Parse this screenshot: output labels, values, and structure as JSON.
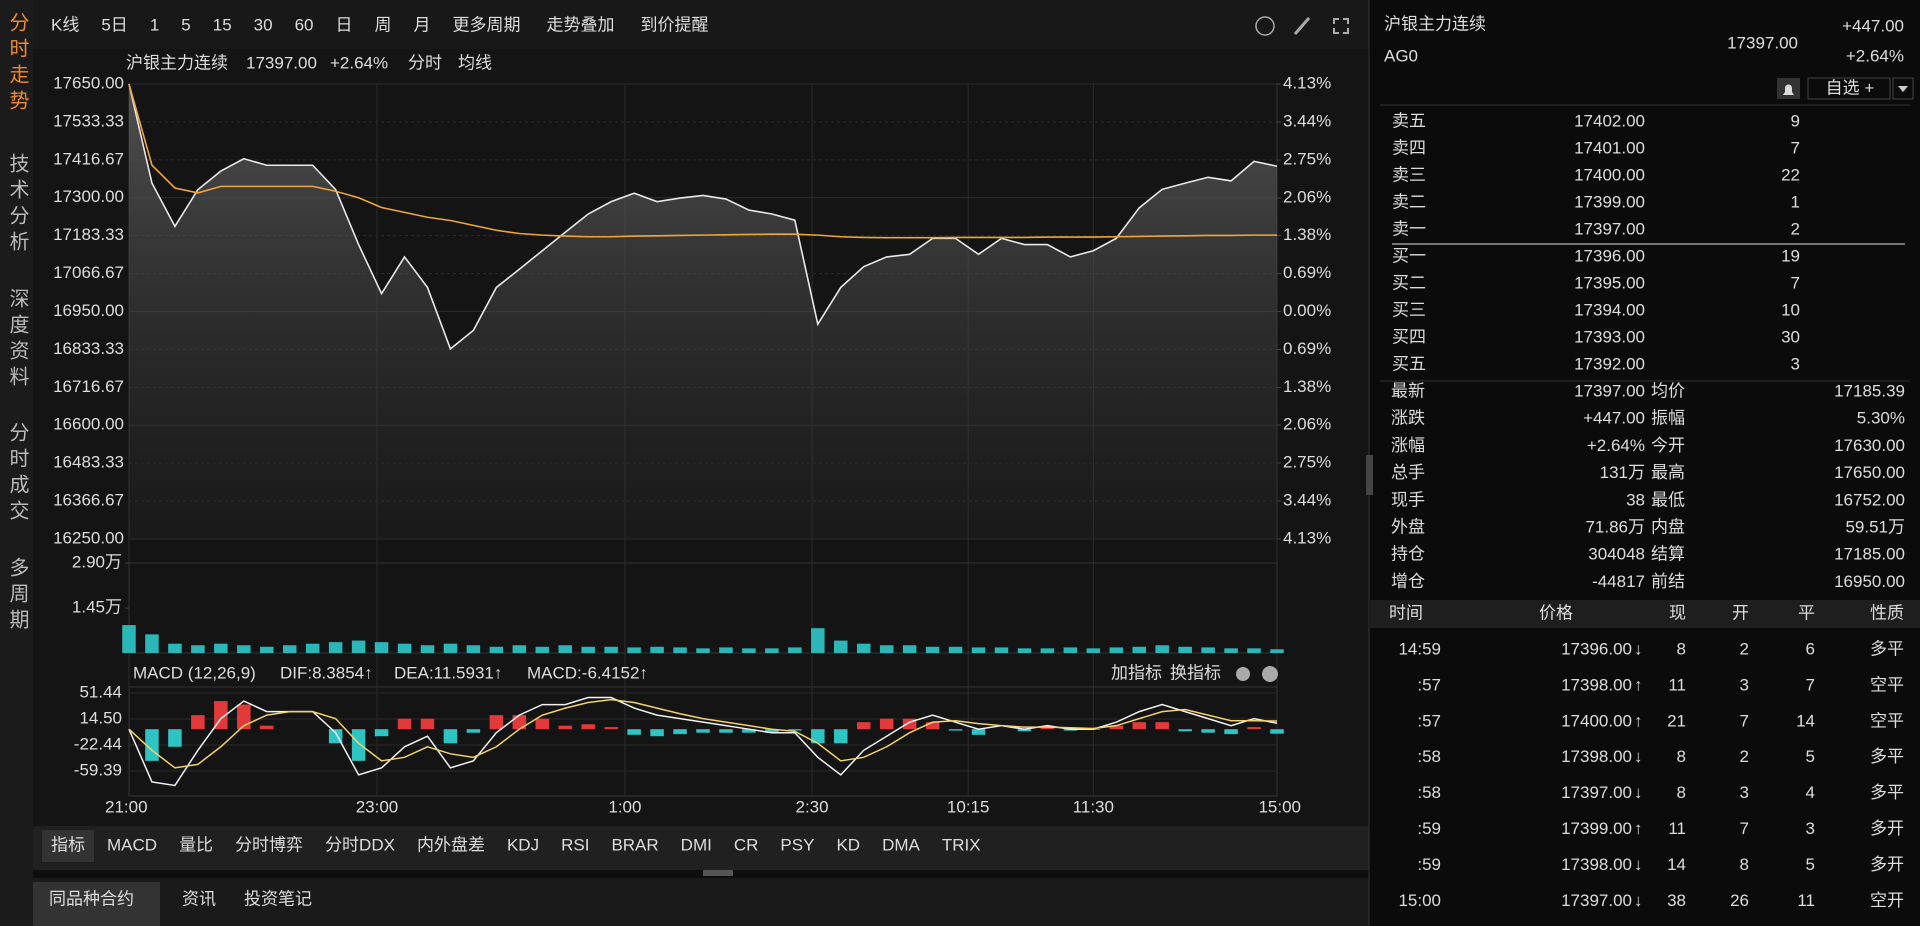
{
  "sidebar_tabs": [
    "分时走势",
    "技术分析",
    "深度资料",
    "分时成交",
    "多周期"
  ],
  "toolbar": [
    "K线",
    "5日",
    "1",
    "5",
    "15",
    "30",
    "60",
    "日",
    "周",
    "月",
    "更多周期",
    "走势叠加",
    "到价提醒"
  ],
  "chart_data": [
    {
      "type": "line",
      "title": "沪银主力连续",
      "price": "17397.00",
      "change": "+2.64%",
      "x": [
        0,
        1,
        2,
        3,
        4,
        5,
        6,
        7,
        8,
        9,
        10,
        11,
        12,
        13,
        14,
        15,
        16,
        17,
        18,
        19,
        20,
        21,
        22,
        23,
        24,
        25,
        26,
        27,
        28,
        29,
        30,
        31,
        32,
        33,
        34,
        35,
        36,
        37,
        38,
        39,
        40,
        41,
        42,
        43,
        44,
        45,
        46,
        47,
        48,
        49,
        50
      ],
      "xlim": [
        0,
        50
      ],
      "series": [
        {
          "name": "分时",
          "color": "#e8e8e8",
          "values": [
            17650,
            17345,
            17212,
            17325,
            17382,
            17420,
            17400,
            17400,
            17400,
            17325,
            17156,
            17005,
            17118,
            17024,
            16835,
            16892,
            17024,
            17080,
            17137,
            17194,
            17250,
            17288,
            17314,
            17288,
            17299,
            17307,
            17296,
            17262,
            17250,
            17231,
            16911,
            17024,
            17088,
            17118,
            17126,
            17175,
            17175,
            17126,
            17175,
            17156,
            17156,
            17118,
            17137,
            17175,
            17269,
            17326,
            17345,
            17363,
            17352,
            17412,
            17397
          ]
        },
        {
          "name": "均线",
          "color": "#f0a636",
          "values": [
            17650,
            17400,
            17330,
            17315,
            17335,
            17335,
            17335,
            17335,
            17335,
            17320,
            17300,
            17270,
            17255,
            17240,
            17230,
            17215,
            17200,
            17190,
            17185,
            17182,
            17180,
            17180,
            17182,
            17183,
            17184,
            17185,
            17186,
            17187,
            17188,
            17188,
            17185,
            17180,
            17178,
            17177,
            17177,
            17177,
            17178,
            17178,
            17178,
            17178,
            17179,
            17179,
            17179,
            17180,
            17181,
            17182,
            17183,
            17184,
            17184,
            17185,
            17185
          ]
        }
      ],
      "ylim": [
        16250,
        17650
      ],
      "yticks": [
        {
          "value": 17650,
          "label": "17650.00"
        },
        {
          "value": 17533.33,
          "label": "17533.33"
        },
        {
          "value": 17416.67,
          "label": "17416.67"
        },
        {
          "value": 17300,
          "label": "17300.00"
        },
        {
          "value": 17183.33,
          "label": "17183.33"
        },
        {
          "value": 17066.67,
          "label": "17066.67"
        },
        {
          "value": 16950,
          "label": "16950.00"
        },
        {
          "value": 16833.33,
          "label": "16833.33"
        },
        {
          "value": 16716.67,
          "label": "16716.67"
        },
        {
          "value": 16600,
          "label": "16600.00"
        },
        {
          "value": 16483.33,
          "label": "16483.33"
        },
        {
          "value": 16366.67,
          "label": "16366.67"
        },
        {
          "value": 16250,
          "label": "16250.00"
        }
      ],
      "y2lim": [
        -4.13,
        4.13
      ],
      "y2ticks": [
        {
          "value": 4.13,
          "label": "4.13%"
        },
        {
          "value": 3.44,
          "label": "3.44%"
        },
        {
          "value": 2.75,
          "label": "2.75%"
        },
        {
          "value": 2.06,
          "label": "2.06%"
        },
        {
          "value": 1.38,
          "label": "1.38%"
        },
        {
          "value": 0.69,
          "label": "0.69%"
        },
        {
          "value": 0,
          "label": "0.00%"
        },
        {
          "value": -0.69,
          "label": "0.69%"
        },
        {
          "value": -1.38,
          "label": "1.38%"
        },
        {
          "value": -2.06,
          "label": "2.06%"
        },
        {
          "value": -2.75,
          "label": "2.75%"
        },
        {
          "value": -3.44,
          "label": "3.44%"
        },
        {
          "value": -4.13,
          "label": "4.13%"
        }
      ],
      "up_color": "#ef3b3b",
      "down_color": "#2fc45a"
    },
    {
      "type": "bar",
      "x": [
        0,
        1,
        2,
        3,
        4,
        5,
        6,
        7,
        8,
        9,
        10,
        11,
        12,
        13,
        14,
        15,
        16,
        17,
        18,
        19,
        20,
        21,
        22,
        23,
        24,
        25,
        26,
        27,
        28,
        29,
        30,
        31,
        32,
        33,
        34,
        35,
        36,
        37,
        38,
        39,
        40,
        41,
        42,
        43,
        44,
        45,
        46,
        47,
        48,
        49,
        50
      ],
      "xlim": [
        0,
        50
      ],
      "color": "#2bb7b7",
      "values": [
        9000,
        6000,
        3000,
        2500,
        3000,
        2500,
        2000,
        2500,
        3000,
        3500,
        4000,
        3500,
        3000,
        2500,
        3000,
        2500,
        2000,
        2500,
        2000,
        2500,
        2000,
        2000,
        1800,
        2000,
        1800,
        1500,
        1800,
        1500,
        1500,
        1800,
        8000,
        4000,
        3000,
        2500,
        2500,
        2000,
        2000,
        1800,
        1800,
        1500,
        1500,
        1800,
        1500,
        1800,
        2000,
        2500,
        2000,
        1800,
        1500,
        1500,
        1200
      ],
      "ylim": [
        0,
        29000
      ],
      "yticks": [
        {
          "value": 29000,
          "label": "2.90万"
        },
        {
          "value": 14500,
          "label": "1.45万"
        }
      ]
    },
    {
      "type": "macd",
      "title": "MACD (12,26,9)",
      "controls": [
        "加指标",
        "换指标"
      ],
      "x": [
        0,
        1,
        2,
        3,
        4,
        5,
        6,
        7,
        8,
        9,
        10,
        11,
        12,
        13,
        14,
        15,
        16,
        17,
        18,
        19,
        20,
        21,
        22,
        23,
        24,
        25,
        26,
        27,
        28,
        29,
        30,
        31,
        32,
        33,
        34,
        35,
        36,
        37,
        38,
        39,
        40,
        41,
        42,
        43,
        44,
        45,
        46,
        47,
        48,
        49,
        50
      ],
      "xlim": [
        0,
        50
      ],
      "xticks": [
        {
          "value": 0,
          "label": "21:00"
        },
        {
          "value": 10.8,
          "label": "23:00"
        },
        {
          "value": 21.6,
          "label": "1:00"
        },
        {
          "value": 29.75,
          "label": "2:30"
        },
        {
          "value": 36.55,
          "label": "10:15"
        },
        {
          "value": 42,
          "label": "11:30"
        },
        {
          "value": 50,
          "label": "15:00"
        }
      ],
      "series": [
        {
          "name": "DIF:8.3854↑",
          "color": "#f2f2f2",
          "values": [
            0,
            -75,
            -80,
            -30,
            15,
            40,
            25,
            25,
            25,
            -5,
            -65,
            -55,
            -25,
            -10,
            -55,
            -45,
            -5,
            20,
            35,
            35,
            45,
            45,
            30,
            20,
            15,
            10,
            5,
            0,
            -5,
            -5,
            -40,
            -65,
            -30,
            -10,
            10,
            20,
            10,
            0,
            5,
            0,
            5,
            0,
            0,
            10,
            25,
            35,
            25,
            15,
            5,
            15,
            8.3854
          ]
        },
        {
          "name": "DEA:11.5931↑",
          "color": "#f3d26a",
          "values": [
            0,
            -30,
            -55,
            -50,
            -25,
            5,
            20,
            25,
            25,
            15,
            -20,
            -45,
            -40,
            -25,
            -35,
            -40,
            -25,
            0,
            20,
            30,
            38,
            42,
            38,
            30,
            22,
            15,
            10,
            5,
            0,
            -3,
            -20,
            -45,
            -40,
            -25,
            -5,
            10,
            12,
            8,
            5,
            3,
            3,
            2,
            1,
            5,
            15,
            25,
            28,
            20,
            12,
            12,
            11.5931
          ]
        },
        {
          "name": "MACD:-6.4152↑",
          "color": "#d454e0",
          "values": [
            0,
            -45,
            -25,
            20,
            40,
            35,
            5,
            0,
            0,
            -20,
            -45,
            -10,
            15,
            15,
            -20,
            -5,
            20,
            20,
            15,
            5,
            7,
            3,
            -8,
            -10,
            -7,
            -5,
            -5,
            -5,
            -5,
            -2,
            -20,
            -20,
            10,
            15,
            15,
            10,
            -2,
            -8,
            0,
            -3,
            2,
            -2,
            -1,
            5,
            10,
            10,
            -3,
            -5,
            -7,
            3,
            -6.4152
          ]
        }
      ],
      "ylim": [
        -95,
        60
      ],
      "yticks": [
        51.44,
        {
          "value": 14.5,
          "label": "14.50"
        },
        -22.44,
        -59.39
      ],
      "up_color": "#e23a3a",
      "down_color": "#2ec4c4"
    }
  ],
  "indicator_tabs": [
    "指标",
    "MACD",
    "量比",
    "分时博弈",
    "分时DDX",
    "内外盘差",
    "KDJ",
    "RSI",
    "BRAR",
    "DMI",
    "CR",
    "PSY",
    "KD",
    "DMA",
    "TRIX"
  ],
  "bottom_tabs": [
    "同品种合约",
    "资讯",
    "投资笔记"
  ],
  "quote": {
    "name": "沪银主力连续",
    "code": "AG0",
    "price": "17397.00",
    "change": "+447.00",
    "change_pct": "+2.64%",
    "watch": "自选 +"
  },
  "order_book": [
    {
      "label": "卖五",
      "price": "17402.00",
      "volume": "9"
    },
    {
      "label": "卖四",
      "price": "17401.00",
      "volume": "7"
    },
    {
      "label": "卖三",
      "price": "17400.00",
      "volume": "22"
    },
    {
      "label": "卖二",
      "price": "17399.00",
      "volume": "1"
    },
    {
      "label": "卖一",
      "price": "17397.00",
      "volume": "2"
    },
    {
      "label": "买一",
      "price": "17396.00",
      "volume": "19"
    },
    {
      "label": "买二",
      "price": "17395.00",
      "volume": "7"
    },
    {
      "label": "买三",
      "price": "17394.00",
      "volume": "10"
    },
    {
      "label": "买四",
      "price": "17393.00",
      "volume": "30"
    },
    {
      "label": "买五",
      "price": "17392.00",
      "volume": "3"
    }
  ],
  "stats": [
    [
      {
        "label": "最新",
        "value": "17397.00",
        "color": "#ef3b3b"
      },
      {
        "label": "均价",
        "value": "17185.39",
        "color": "#ef3b3b"
      }
    ],
    [
      {
        "label": "涨跌",
        "value": "+447.00",
        "color": "#ef3b3b"
      },
      {
        "label": "振幅",
        "value": "5.30%",
        "color": "#e6e6e6"
      }
    ],
    [
      {
        "label": "涨幅",
        "value": "+2.64%",
        "color": "#ef3b3b"
      },
      {
        "label": "今开",
        "value": "17630.00",
        "color": "#ef3b3b"
      }
    ],
    [
      {
        "label": "总手",
        "value": "131万",
        "color": "#e6e6e6"
      },
      {
        "label": "最高",
        "value": "17650.00",
        "color": "#ef3b3b"
      }
    ],
    [
      {
        "label": "现手",
        "value": "38",
        "color": "#e6e6e6"
      },
      {
        "label": "最低",
        "value": "16752.00",
        "color": "#2fc45a"
      }
    ],
    [
      {
        "label": "外盘",
        "value": "71.86万",
        "color": "#ef3b3b"
      },
      {
        "label": "内盘",
        "value": "59.51万",
        "color": "#2fc45a"
      }
    ],
    [
      {
        "label": "持仓",
        "value": "304048",
        "color": "#e6e6e6"
      },
      {
        "label": "结算",
        "value": "17185.00",
        "color": "#e6e6e6"
      }
    ],
    [
      {
        "label": "增仓",
        "value": "-44817",
        "color": "#2fc45a"
      },
      {
        "label": "前结",
        "value": "16950.00",
        "color": "#e6e6e6"
      }
    ]
  ],
  "trades": {
    "columns": [
      "时间",
      "价格",
      "现",
      "开",
      "平",
      "性质"
    ],
    "rows": [
      {
        "time": "14:59",
        "price": "17396.00",
        "arrow": "↓",
        "arrow_color": "#2fc45a",
        "now": "8",
        "now_color": "#2fc45a",
        "open": "2",
        "close": "6",
        "nature": "多平",
        "nature_color": "#2fc45a"
      },
      {
        "time": ":57",
        "price": "17398.00",
        "arrow": "↑",
        "arrow_color": "#ef3b3b",
        "now": "11",
        "now_color": "#ef3b3b",
        "open": "3",
        "close": "7",
        "nature": "空平",
        "nature_color": "#ef3b3b"
      },
      {
        "time": ":57",
        "price": "17400.00",
        "arrow": "↑",
        "arrow_color": "#ef3b3b",
        "now": "21",
        "now_color": "#ef3b3b",
        "open": "7",
        "close": "14",
        "nature": "空平",
        "nature_color": "#ef3b3b"
      },
      {
        "time": ":58",
        "price": "17398.00",
        "arrow": "↓",
        "arrow_color": "#2fc45a",
        "now": "8",
        "now_color": "#2fc45a",
        "open": "2",
        "close": "5",
        "nature": "多平",
        "nature_color": "#2fc45a"
      },
      {
        "time": ":58",
        "price": "17397.00",
        "arrow": "↓",
        "arrow_color": "#2fc45a",
        "now": "8",
        "now_color": "#2fc45a",
        "open": "3",
        "close": "4",
        "nature": "多平",
        "nature_color": "#2fc45a"
      },
      {
        "time": ":59",
        "price": "17399.00",
        "arrow": "↑",
        "arrow_color": "#ef3b3b",
        "now": "11",
        "now_color": "#ef3b3b",
        "open": "7",
        "close": "3",
        "nature": "多开",
        "nature_color": "#ef3b3b"
      },
      {
        "time": ":59",
        "price": "17398.00",
        "arrow": "↓",
        "arrow_color": "#2fc45a",
        "now": "14",
        "now_color": "#ef3b3b",
        "open": "8",
        "close": "5",
        "nature": "多开",
        "nature_color": "#ef3b3b"
      },
      {
        "time": "15:00",
        "price": "17397.00",
        "arrow": "↓",
        "arrow_color": "#2fc45a",
        "now": "38",
        "now_color": "#2fc45a",
        "open": "26",
        "close": "11",
        "nature": "空开",
        "nature_color": "#2fc45a"
      }
    ]
  }
}
